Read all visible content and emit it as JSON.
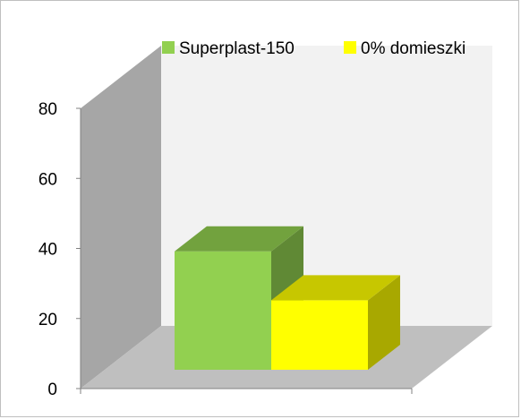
{
  "chart_data": {
    "type": "bar",
    "title": "",
    "xlabel": "",
    "ylabel": "",
    "ylim": [
      0,
      80
    ],
    "y_ticks": [
      "0",
      "20",
      "40",
      "60",
      "80"
    ],
    "categories": [
      ""
    ],
    "series": [
      {
        "name": "Superplast-150",
        "values": [
          46
        ]
      },
      {
        "name": "0% domieszki",
        "values": [
          27
        ]
      }
    ],
    "style": "3d-column",
    "legend_position": "top",
    "grid": false,
    "colors": {
      "series": [
        "#92d050",
        "#ffff00"
      ],
      "back_wall": "#f2f2f2",
      "side_wall": "#a6a6a6",
      "floor": "#bfbfbf"
    }
  }
}
